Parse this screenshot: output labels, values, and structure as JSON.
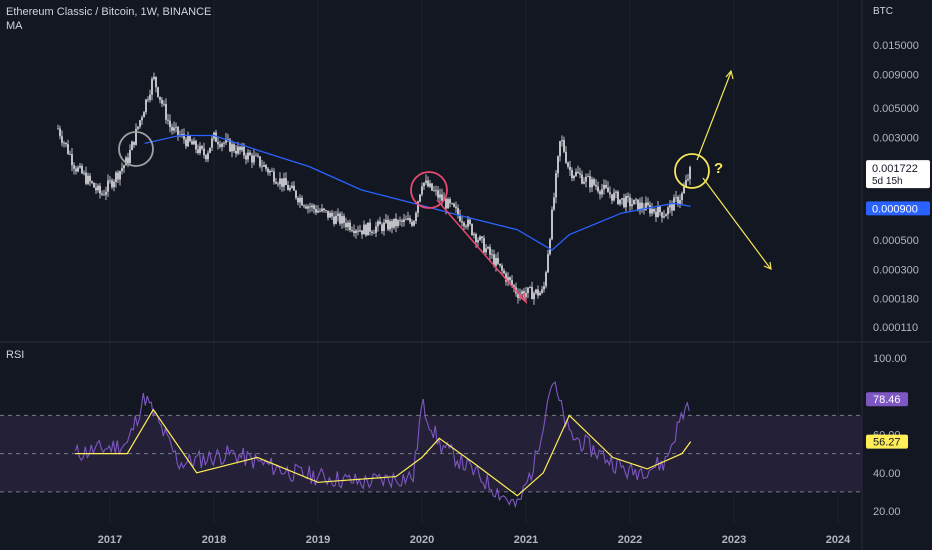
{
  "header": {
    "symbol": "Ethereum Classic / Bitcoin, 1W, BINANCE",
    "indicator": "MA"
  },
  "colors": {
    "background": "#131722",
    "candle": "#e9eaee",
    "ma": "#2962ff",
    "rsi": "#7e57c2",
    "rsi_ma": "#ffee58",
    "rsi_band": "#2a2440",
    "annotation_pink": "#e64a6e",
    "annotation_yellow": "#f7e65a",
    "annotation_gray": "#9aa3a0"
  },
  "chart_data": [
    {
      "type": "candlestick",
      "ylabel": "BTC",
      "yscale": "log",
      "ylim": [
        0.0001,
        0.02
      ],
      "y_ticks": [
        "0.015000",
        "0.009000",
        "0.005000",
        "0.003000",
        "0.001722",
        "0.000900",
        "0.000500",
        "0.000300",
        "0.000180",
        "0.000110"
      ],
      "x_ticks": [
        "2017",
        "2018",
        "2019",
        "2020",
        "2021",
        "2022",
        "2023",
        "2024"
      ],
      "current_price": "0.001722",
      "countdown": "5d 15h",
      "ma_value": "0.000900",
      "price_path": [
        {
          "date": "2016-07",
          "value": 0.0035
        },
        {
          "date": "2016-09",
          "value": 0.0018
        },
        {
          "date": "2016-12",
          "value": 0.0011
        },
        {
          "date": "2017-03",
          "value": 0.002
        },
        {
          "date": "2017-06",
          "value": 0.0085
        },
        {
          "date": "2017-08",
          "value": 0.0035
        },
        {
          "date": "2017-12",
          "value": 0.0022
        },
        {
          "date": "2018-01",
          "value": 0.003
        },
        {
          "date": "2018-06",
          "value": 0.002
        },
        {
          "date": "2018-12",
          "value": 0.0009
        },
        {
          "date": "2019-06",
          "value": 0.0006
        },
        {
          "date": "2019-12",
          "value": 0.0007
        },
        {
          "date": "2020-01",
          "value": 0.0014
        },
        {
          "date": "2020-06",
          "value": 0.0007
        },
        {
          "date": "2020-12",
          "value": 0.0002
        },
        {
          "date": "2021-03",
          "value": 0.0002
        },
        {
          "date": "2021-05",
          "value": 0.003
        },
        {
          "date": "2021-06",
          "value": 0.0017
        },
        {
          "date": "2021-12",
          "value": 0.001
        },
        {
          "date": "2022-05",
          "value": 0.0008
        },
        {
          "date": "2022-07",
          "value": 0.0011
        },
        {
          "date": "2022-08",
          "value": 0.0017
        }
      ],
      "ma_path": [
        {
          "date": "2017-05",
          "value": 0.0027
        },
        {
          "date": "2017-09",
          "value": 0.0031
        },
        {
          "date": "2018-01",
          "value": 0.0031
        },
        {
          "date": "2018-06",
          "value": 0.0024
        },
        {
          "date": "2018-12",
          "value": 0.0018
        },
        {
          "date": "2019-06",
          "value": 0.0012
        },
        {
          "date": "2019-12",
          "value": 0.00095
        },
        {
          "date": "2020-06",
          "value": 0.00075
        },
        {
          "date": "2020-12",
          "value": 0.0006
        },
        {
          "date": "2021-04",
          "value": 0.00042
        },
        {
          "date": "2021-06",
          "value": 0.00055
        },
        {
          "date": "2021-12",
          "value": 0.0008
        },
        {
          "date": "2022-06",
          "value": 0.00095
        },
        {
          "date": "2022-08",
          "value": 0.0009
        }
      ]
    },
    {
      "type": "line",
      "title": "RSI",
      "ylim": [
        15,
        105
      ],
      "y_ticks": [
        "100.00",
        "80.00",
        "60.00",
        "40.00",
        "20.00"
      ],
      "levels": [
        70,
        50,
        30
      ],
      "rsi_value": "78.46",
      "rsi_ma_value": "56.27",
      "rsi_path": [
        {
          "date": "2016-09",
          "value": 50
        },
        {
          "date": "2017-03",
          "value": 55
        },
        {
          "date": "2017-05",
          "value": 80
        },
        {
          "date": "2017-09",
          "value": 45
        },
        {
          "date": "2018-03",
          "value": 50
        },
        {
          "date": "2018-10",
          "value": 40
        },
        {
          "date": "2019-06",
          "value": 35
        },
        {
          "date": "2019-12",
          "value": 38
        },
        {
          "date": "2020-01",
          "value": 76
        },
        {
          "date": "2020-03",
          "value": 55
        },
        {
          "date": "2020-12",
          "value": 22
        },
        {
          "date": "2021-02",
          "value": 45
        },
        {
          "date": "2021-04",
          "value": 89
        },
        {
          "date": "2021-06",
          "value": 60
        },
        {
          "date": "2022-01",
          "value": 40
        },
        {
          "date": "2022-05",
          "value": 45
        },
        {
          "date": "2022-07",
          "value": 70
        },
        {
          "date": "2022-08",
          "value": 78.46
        }
      ],
      "rsi_ma_path": [
        {
          "date": "2016-09",
          "value": 50
        },
        {
          "date": "2017-03",
          "value": 50
        },
        {
          "date": "2017-06",
          "value": 73
        },
        {
          "date": "2017-11",
          "value": 40
        },
        {
          "date": "2018-06",
          "value": 48
        },
        {
          "date": "2019-01",
          "value": 35
        },
        {
          "date": "2019-10",
          "value": 38
        },
        {
          "date": "2020-01",
          "value": 48
        },
        {
          "date": "2020-03",
          "value": 58
        },
        {
          "date": "2020-07",
          "value": 45
        },
        {
          "date": "2020-12",
          "value": 28
        },
        {
          "date": "2021-03",
          "value": 40
        },
        {
          "date": "2021-06",
          "value": 70
        },
        {
          "date": "2021-11",
          "value": 48
        },
        {
          "date": "2022-03",
          "value": 42
        },
        {
          "date": "2022-07",
          "value": 50
        },
        {
          "date": "2022-08",
          "value": 56.27
        }
      ]
    }
  ],
  "annotations": {
    "question_mark": "?"
  }
}
